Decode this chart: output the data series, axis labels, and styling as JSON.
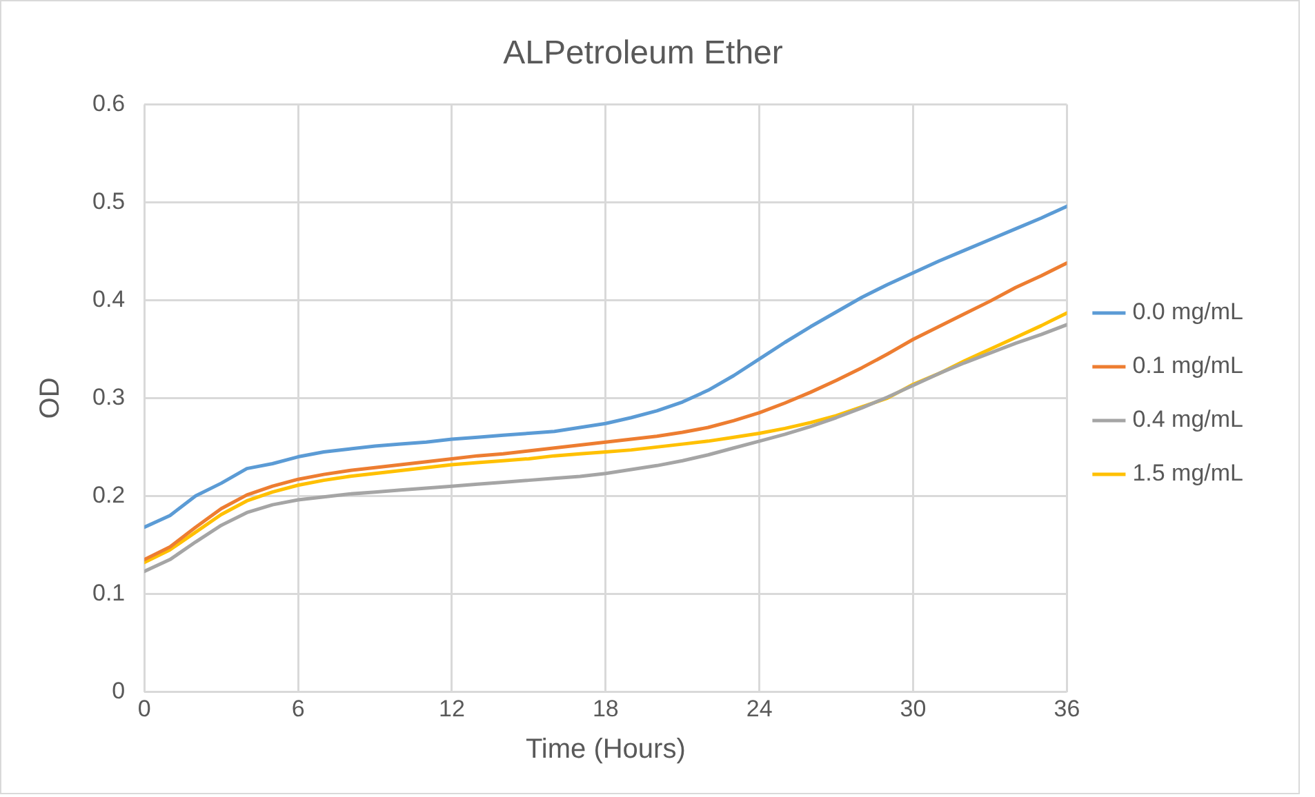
{
  "chart_data": {
    "type": "line",
    "title": "ALPetroleum Ether",
    "xlabel": "Time (Hours)",
    "ylabel": "OD",
    "x": [
      0,
      1,
      2,
      3,
      4,
      5,
      6,
      7,
      8,
      9,
      10,
      11,
      12,
      13,
      14,
      15,
      16,
      17,
      18,
      19,
      20,
      21,
      22,
      23,
      24,
      25,
      26,
      27,
      28,
      29,
      30,
      31,
      32,
      33,
      34,
      35,
      36
    ],
    "xlim": [
      0,
      36
    ],
    "xticks": [
      0,
      6,
      12,
      18,
      24,
      30,
      36
    ],
    "ylim": [
      0,
      0.6
    ],
    "yticks": [
      0,
      0.1,
      0.2,
      0.3,
      0.4,
      0.5,
      0.6
    ],
    "grid": true,
    "legend": "right",
    "marker": "none",
    "line_style": "solid",
    "series": [
      {
        "name": "0.0 mg/mL",
        "color": "#5b9bd5",
        "values": [
          0.168,
          0.18,
          0.2,
          0.213,
          0.228,
          0.233,
          0.24,
          0.245,
          0.248,
          0.251,
          0.253,
          0.255,
          0.258,
          0.26,
          0.262,
          0.264,
          0.266,
          0.27,
          0.274,
          0.28,
          0.287,
          0.296,
          0.308,
          0.323,
          0.34,
          0.357,
          0.373,
          0.388,
          0.403,
          0.416,
          0.428,
          0.44,
          0.451,
          0.462,
          0.473,
          0.484,
          0.496
        ]
      },
      {
        "name": "0.1 mg/mL",
        "color": "#ed7d31",
        "values": [
          0.135,
          0.148,
          0.168,
          0.187,
          0.201,
          0.21,
          0.217,
          0.222,
          0.226,
          0.229,
          0.232,
          0.235,
          0.238,
          0.241,
          0.243,
          0.246,
          0.249,
          0.252,
          0.255,
          0.258,
          0.261,
          0.265,
          0.27,
          0.277,
          0.285,
          0.295,
          0.306,
          0.318,
          0.331,
          0.345,
          0.36,
          0.373,
          0.386,
          0.399,
          0.413,
          0.425,
          0.438
        ]
      },
      {
        "name": "0.4 mg/mL",
        "color": "#a5a5a5",
        "values": [
          0.123,
          0.135,
          0.153,
          0.17,
          0.183,
          0.191,
          0.196,
          0.199,
          0.202,
          0.204,
          0.206,
          0.208,
          0.21,
          0.212,
          0.214,
          0.216,
          0.218,
          0.22,
          0.223,
          0.227,
          0.231,
          0.236,
          0.242,
          0.249,
          0.256,
          0.263,
          0.271,
          0.28,
          0.29,
          0.301,
          0.313,
          0.325,
          0.336,
          0.346,
          0.356,
          0.365,
          0.375
        ]
      },
      {
        "name": "1.5 mg/mL",
        "color": "#ffc000",
        "values": [
          0.132,
          0.145,
          0.163,
          0.181,
          0.195,
          0.204,
          0.211,
          0.216,
          0.22,
          0.223,
          0.226,
          0.229,
          0.232,
          0.234,
          0.236,
          0.238,
          0.241,
          0.243,
          0.245,
          0.247,
          0.25,
          0.253,
          0.256,
          0.26,
          0.264,
          0.269,
          0.275,
          0.282,
          0.291,
          0.3,
          0.314,
          0.325,
          0.338,
          0.35,
          0.362,
          0.374,
          0.387
        ]
      }
    ]
  }
}
